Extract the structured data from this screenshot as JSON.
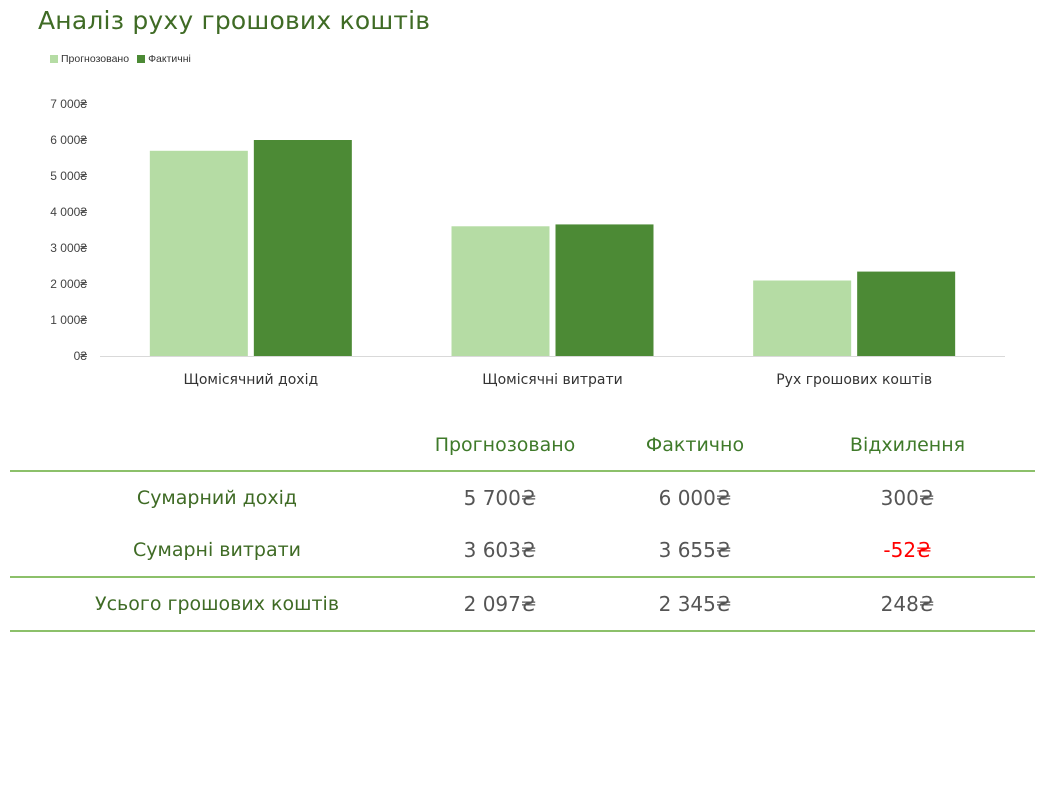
{
  "title": "Аналіз руху грошових коштів",
  "legend": [
    "Прогнозовано",
    "Фактичні"
  ],
  "colors": {
    "forecast": "#b5dca4",
    "actual": "#4c8a35",
    "title": "#3f6b25",
    "negative": "#ff0000",
    "rule": "#8cc06a"
  },
  "chart_data": {
    "type": "bar",
    "title": "",
    "xlabel": "",
    "ylabel": "",
    "categories": [
      "Щомісячний дохід",
      "Щомісячні витрати",
      "Рух грошових коштів"
    ],
    "series": [
      {
        "name": "Прогнозовано",
        "values": [
          5700,
          3603,
          2097
        ]
      },
      {
        "name": "Фактичні",
        "values": [
          6000,
          3655,
          2345
        ]
      }
    ],
    "ylim": [
      0,
      7000
    ],
    "yticks": [
      "0₴",
      "1 000₴",
      "2 000₴",
      "3 000₴",
      "4 000₴",
      "5 000₴",
      "6 000₴",
      "7 000₴"
    ],
    "grid": false,
    "legend_position": "top-left"
  },
  "summary": {
    "headers": [
      "",
      "Прогнозовано",
      "Фактично",
      "Відхилення"
    ],
    "rows": [
      {
        "label": "Сумарний дохід",
        "forecast": "5 700₴",
        "actual": "6 000₴",
        "deviation": "300₴"
      },
      {
        "label": "Сумарні витрати",
        "forecast": "3 603₴",
        "actual": "3 655₴",
        "deviation": "-52₴"
      },
      {
        "label": "Усього грошових коштів",
        "forecast": "2 097₴",
        "actual": "2 345₴",
        "deviation": "248₴"
      }
    ]
  }
}
